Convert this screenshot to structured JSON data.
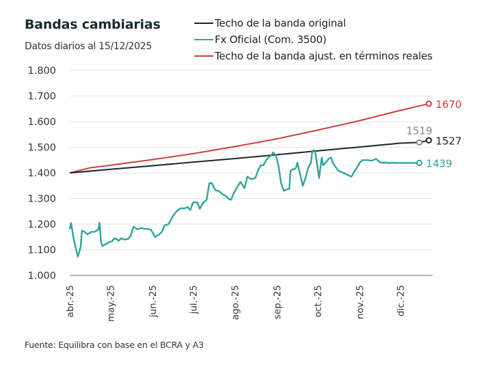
{
  "header": {
    "title": "Bandas cambiarias",
    "subtitle": "Datos diarios al 15/12/2025"
  },
  "source": "Fuente: Equilibra con base en el BCRA y A3",
  "legend": [
    {
      "label": "Techo de la banda original",
      "color": "#1a262b"
    },
    {
      "label": "Fx Oficial (Com. 3500)",
      "color": "#2ea39b"
    },
    {
      "label": "Techo de la banda ajust. en términos reales",
      "color": "#d23c3c"
    }
  ],
  "chart_data": {
    "type": "line",
    "title": "Bandas cambiarias",
    "subtitle": "Datos diarios al 15/12/2025",
    "xlabel": "",
    "ylabel": "",
    "ylim": [
      1000,
      1800
    ],
    "yticks": [
      1000,
      1100,
      1200,
      1300,
      1400,
      1500,
      1600,
      1700,
      1800
    ],
    "ytick_labels": [
      "1.000",
      "1.100",
      "1.200",
      "1.300",
      "1.400",
      "1.500",
      "1.600",
      "1.700",
      "1.800"
    ],
    "x_unit": "days since 2025-04-01",
    "xlim": [
      0,
      265
    ],
    "xticks": [
      0,
      30,
      61,
      91,
      122,
      153,
      183,
      214,
      244
    ],
    "xtick_labels": [
      "abr.-25",
      "may.-25",
      "jun.-25",
      "jul.-25",
      "ago.-25",
      "sep.-25",
      "oct.-25",
      "nov.-25",
      "dic.-25"
    ],
    "grid": true,
    "legend_position": "top-right",
    "series": [
      {
        "name": "Techo de la banda original",
        "color": "#1a262b",
        "x": [
          0,
          30,
          61,
          91,
          122,
          153,
          183,
          214,
          244,
          258,
          265
        ],
        "values": [
          1400,
          1414,
          1428,
          1442,
          1456,
          1471,
          1486,
          1501,
          1516,
          1519,
          1527
        ],
        "markers": [
          {
            "x": 258,
            "value": 1519,
            "label": "1519",
            "color": "#8a8a8a"
          },
          {
            "x": 265,
            "value": 1527,
            "label": "1527",
            "color": "#1a262b"
          }
        ]
      },
      {
        "name": "Fx Oficial (Com. 3500)",
        "color": "#2ea39b",
        "x": [
          0,
          1,
          2,
          3,
          6,
          8,
          9,
          11,
          13,
          16,
          18,
          21,
          22,
          23,
          24,
          26,
          29,
          31,
          33,
          35,
          36,
          38,
          40,
          43,
          45,
          47,
          50,
          53,
          55,
          57,
          60,
          63,
          66,
          68,
          70,
          73,
          76,
          78,
          80,
          82,
          85,
          87,
          89,
          91,
          94,
          96,
          98,
          100,
          101,
          103,
          105,
          107,
          109,
          110,
          112,
          115,
          117,
          119,
          121,
          123,
          126,
          129,
          131,
          134,
          137,
          139,
          141,
          143,
          145,
          147,
          149,
          150,
          152,
          154,
          156,
          158,
          160,
          162,
          163,
          165,
          166,
          167,
          168,
          170,
          172,
          174,
          176,
          178,
          179,
          180,
          181,
          182,
          184,
          186,
          187,
          189,
          191,
          193,
          194,
          196,
          198,
          200,
          202,
          204,
          206,
          208,
          210,
          212,
          214,
          216,
          218,
          220,
          222,
          224,
          226,
          228,
          230,
          232,
          234,
          236,
          238,
          240,
          242,
          244,
          246,
          248,
          250,
          252,
          254,
          256,
          258
        ],
        "values": [
          1180,
          1205,
          1170,
          1140,
          1073,
          1110,
          1175,
          1170,
          1160,
          1170,
          1170,
          1178,
          1205,
          1135,
          1115,
          1120,
          1130,
          1132,
          1145,
          1140,
          1135,
          1145,
          1140,
          1142,
          1155,
          1190,
          1180,
          1185,
          1182,
          1182,
          1178,
          1150,
          1160,
          1170,
          1195,
          1200,
          1230,
          1245,
          1255,
          1262,
          1262,
          1267,
          1255,
          1285,
          1285,
          1260,
          1280,
          1290,
          1295,
          1360,
          1360,
          1335,
          1330,
          1330,
          1320,
          1310,
          1300,
          1295,
          1320,
          1340,
          1365,
          1340,
          1385,
          1375,
          1380,
          1410,
          1430,
          1430,
          1450,
          1462,
          1470,
          1480,
          1470,
          1430,
          1360,
          1330,
          1335,
          1338,
          1410,
          1415,
          1415,
          1420,
          1440,
          1395,
          1350,
          1380,
          1420,
          1440,
          1485,
          1488,
          1487,
          1455,
          1380,
          1460,
          1430,
          1440,
          1455,
          1460,
          1440,
          1425,
          1410,
          1405,
          1400,
          1395,
          1390,
          1385,
          1405,
          1420,
          1440,
          1450,
          1450,
          1450,
          1448,
          1450,
          1455,
          1445,
          1440,
          1440,
          1440,
          1438,
          1440,
          1439,
          1439,
          1439,
          1439,
          1439,
          1439,
          1439,
          1439,
          1439,
          1439
        ],
        "markers": [
          {
            "x": 258,
            "value": 1439,
            "label": "1439",
            "color": "#2ea39b"
          }
        ]
      },
      {
        "name": "Techo de la banda ajust. en términos reales",
        "color": "#d23c3c",
        "x": [
          0,
          15,
          30,
          61,
          91,
          122,
          153,
          183,
          214,
          244,
          265
        ],
        "values": [
          1400,
          1420,
          1430,
          1452,
          1475,
          1503,
          1533,
          1567,
          1604,
          1644,
          1670
        ],
        "markers": [
          {
            "x": 265,
            "value": 1670,
            "label": "1670",
            "color": "#d23c3c"
          }
        ]
      }
    ]
  }
}
